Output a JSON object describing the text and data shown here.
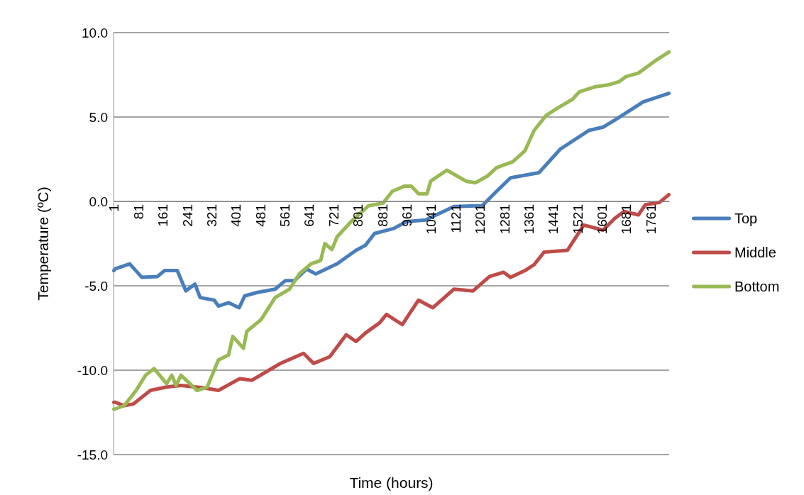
{
  "chart_data": {
    "type": "line",
    "xlabel": "Time (hours)",
    "ylabel": "Temperature (ºC)",
    "xlim": [
      0,
      1822
    ],
    "xticks": [
      1,
      81,
      161,
      241,
      321,
      401,
      481,
      561,
      641,
      721,
      801,
      881,
      961,
      1041,
      1121,
      1201,
      1281,
      1361,
      1441,
      1521,
      1601,
      1681,
      1761
    ],
    "ylim": [
      -15,
      10
    ],
    "yticks": [
      {
        "value": -15,
        "label": "-15.0"
      },
      {
        "value": -10,
        "label": "-10.0"
      },
      {
        "value": -5,
        "label": "-5.0"
      },
      {
        "value": 0,
        "label": "0.0"
      },
      {
        "value": 5,
        "label": "5.0"
      },
      {
        "value": 10,
        "label": "10.0"
      }
    ],
    "grid": "y",
    "legend": "right",
    "marker": "none",
    "line_style": "solid",
    "series": [
      {
        "name": "Top",
        "color": "#4a7ebb",
        "x": [
          1,
          5,
          53,
          93,
          144,
          167,
          209,
          237,
          267,
          284,
          330,
          344,
          377,
          412,
          430,
          470,
          530,
          563,
          593,
          633,
          663,
          733,
          795,
          826,
          856,
          919,
          960,
          1023,
          1116,
          1209,
          1256,
          1302,
          1395,
          1465,
          1558,
          1605,
          1651,
          1737,
          1821
        ],
        "values": [
          -4.1,
          -4.0,
          -3.7,
          -4.5,
          -4.45,
          -4.1,
          -4.1,
          -5.3,
          -4.9,
          -5.7,
          -5.85,
          -6.2,
          -6.0,
          -6.3,
          -5.6,
          -5.4,
          -5.2,
          -4.7,
          -4.7,
          -4.0,
          -4.3,
          -3.7,
          -2.9,
          -2.6,
          -1.9,
          -1.6,
          -1.2,
          -1.1,
          -0.3,
          -0.25,
          0.6,
          1.4,
          1.7,
          3.1,
          4.2,
          4.4,
          4.9,
          5.9,
          6.4
        ]
      },
      {
        "name": "Middle",
        "color": "#be4b48",
        "x": [
          1,
          5,
          35,
          65,
          121,
          174,
          221,
          298,
          344,
          414,
          453,
          547,
          623,
          656,
          709,
          763,
          795,
          826,
          872,
          895,
          947,
          1000,
          1047,
          1116,
          1179,
          1233,
          1279,
          1302,
          1349,
          1379,
          1412,
          1488,
          1542,
          1605,
          1644,
          1674,
          1721,
          1744,
          1791,
          1821
        ],
        "values": [
          -11.9,
          -11.9,
          -12.1,
          -12.0,
          -11.2,
          -11.0,
          -10.9,
          -11.05,
          -11.2,
          -10.5,
          -10.6,
          -9.6,
          -9.0,
          -9.6,
          -9.2,
          -7.9,
          -8.3,
          -7.8,
          -7.2,
          -6.7,
          -7.3,
          -5.85,
          -6.3,
          -5.2,
          -5.3,
          -4.45,
          -4.2,
          -4.5,
          -4.1,
          -3.75,
          -3.0,
          -2.9,
          -1.4,
          -1.7,
          -1.0,
          -0.6,
          -0.8,
          -0.2,
          -0.05,
          0.4
        ]
      },
      {
        "name": "Bottom",
        "color": "#98b954",
        "x": [
          1,
          5,
          35,
          74,
          105,
          133,
          174,
          191,
          205,
          221,
          274,
          307,
          344,
          377,
          391,
          426,
          437,
          484,
          530,
          577,
          609,
          647,
          679,
          693,
          716,
          733,
          779,
          809,
          837,
          884,
          914,
          953,
          977,
          1000,
          1028,
          1040,
          1093,
          1156,
          1186,
          1226,
          1256,
          1309,
          1349,
          1379,
          1419,
          1458,
          1505,
          1528,
          1581,
          1621,
          1658,
          1681,
          1721,
          1774,
          1821
        ],
        "values": [
          -12.3,
          -12.3,
          -12.1,
          -11.2,
          -10.3,
          -9.9,
          -10.8,
          -10.3,
          -10.9,
          -10.3,
          -11.2,
          -11.0,
          -9.4,
          -9.1,
          -8.0,
          -8.7,
          -7.7,
          -7.0,
          -5.7,
          -5.2,
          -4.3,
          -3.7,
          -3.5,
          -2.5,
          -2.85,
          -2.1,
          -1.2,
          -0.7,
          -0.25,
          -0.1,
          0.6,
          0.9,
          0.9,
          0.45,
          0.45,
          1.2,
          1.85,
          1.2,
          1.1,
          1.5,
          2.0,
          2.35,
          3.0,
          4.2,
          5.1,
          5.55,
          6.05,
          6.5,
          6.8,
          6.9,
          7.1,
          7.4,
          7.6,
          8.3,
          8.85
        ]
      }
    ]
  }
}
